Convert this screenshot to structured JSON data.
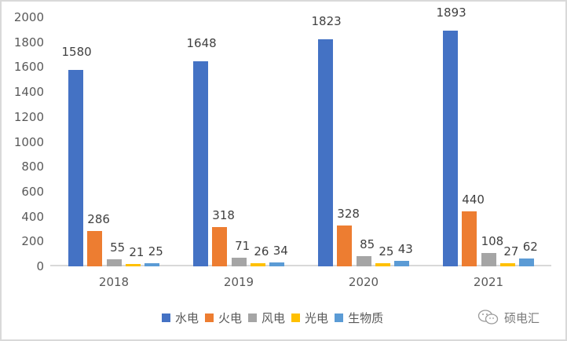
{
  "chart_data": {
    "type": "bar",
    "title": "",
    "xlabel": "",
    "ylabel": "",
    "ylim": [
      0,
      2000
    ],
    "yticks": [
      0,
      200,
      400,
      600,
      800,
      1000,
      1200,
      1400,
      1600,
      1800,
      2000
    ],
    "grid": false,
    "legend_position": "bottom",
    "categories": [
      "2018",
      "2019",
      "2020",
      "2021"
    ],
    "series": [
      {
        "name": "水电",
        "color": "#4472c4",
        "values": [
          1580,
          1648,
          1823,
          1893
        ]
      },
      {
        "name": "火电",
        "color": "#ed7d31",
        "values": [
          286,
          318,
          328,
          440
        ]
      },
      {
        "name": "风电",
        "color": "#a5a5a5",
        "values": [
          55,
          71,
          85,
          108
        ]
      },
      {
        "name": "光电",
        "color": "#ffc000",
        "values": [
          21,
          26,
          25,
          27
        ]
      },
      {
        "name": "生物质",
        "color": "#5b9bd5",
        "values": [
          25,
          34,
          43,
          62
        ]
      }
    ]
  },
  "yaxis": {
    "ticks": [
      "0",
      "200",
      "400",
      "600",
      "800",
      "1000",
      "1200",
      "1400",
      "1600",
      "1800",
      "2000"
    ]
  },
  "xaxis": {
    "labels": [
      "2018",
      "2019",
      "2020",
      "2021"
    ]
  },
  "legend": {
    "items": [
      "水电",
      "火电",
      "风电",
      "光电",
      "生物质"
    ]
  },
  "watermark": {
    "icon": "wechat-icon",
    "text": "硕电汇"
  }
}
